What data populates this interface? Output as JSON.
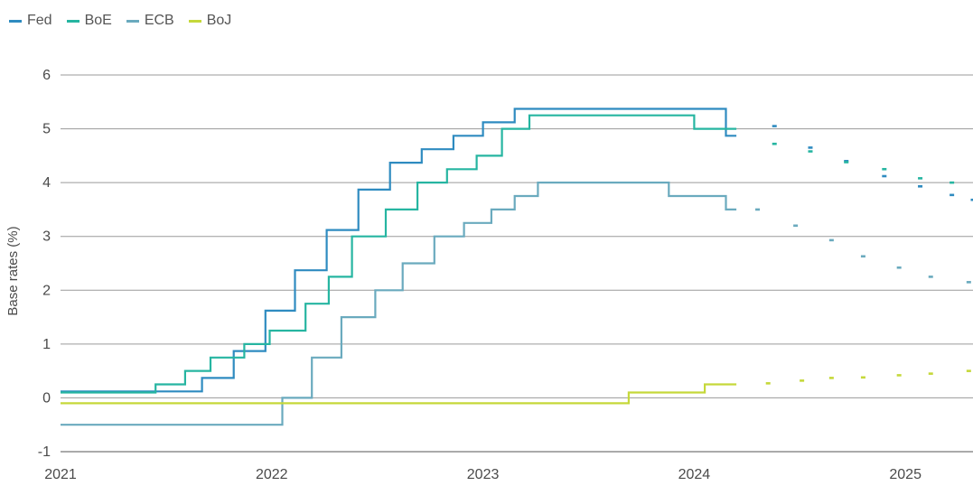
{
  "chart_data": {
    "type": "line",
    "title": "",
    "ylabel": "Base rates (%)",
    "xlabel": "",
    "ylim": [
      -1,
      6
    ],
    "xlim": [
      2021,
      2025.32
    ],
    "yticks": [
      "6",
      "5",
      "4",
      "3",
      "2",
      "1",
      "0",
      "-1"
    ],
    "ytick_values": [
      6,
      5,
      4,
      3,
      2,
      1,
      0,
      -1
    ],
    "xticks": [
      "2021",
      "2022",
      "2023",
      "2024",
      "2025"
    ],
    "xtick_values": [
      2021,
      2022,
      2023,
      2024,
      2025
    ],
    "grid": "horizontal",
    "legend_position": "top-left",
    "series": [
      {
        "name": "Fed",
        "color": "#2e8bc0",
        "steps": [
          [
            2021,
            0.12
          ],
          [
            2021.67,
            0.37
          ],
          [
            2021.82,
            0.87
          ],
          [
            2021.97,
            1.62
          ],
          [
            2022.11,
            2.37
          ],
          [
            2022.26,
            3.12
          ],
          [
            2022.41,
            3.87
          ],
          [
            2022.56,
            4.37
          ],
          [
            2022.71,
            4.62
          ],
          [
            2022.86,
            4.87
          ],
          [
            2023.0,
            5.12
          ],
          [
            2023.15,
            5.37
          ],
          [
            2024.15,
            4.87
          ],
          [
            2024.2,
            4.87
          ]
        ],
        "forecast": [
          [
            2024.38,
            5.05
          ],
          [
            2024.55,
            4.65
          ],
          [
            2024.72,
            4.4
          ],
          [
            2024.9,
            4.12
          ],
          [
            2025.07,
            3.93
          ],
          [
            2025.22,
            3.77
          ],
          [
            2025.32,
            3.68
          ]
        ]
      },
      {
        "name": "BoE",
        "color": "#26b5a1",
        "steps": [
          [
            2021,
            0.1
          ],
          [
            2021.45,
            0.25
          ],
          [
            2021.59,
            0.5
          ],
          [
            2021.71,
            0.75
          ],
          [
            2021.87,
            1.0
          ],
          [
            2021.99,
            1.25
          ],
          [
            2022.16,
            1.75
          ],
          [
            2022.27,
            2.25
          ],
          [
            2022.38,
            3.0
          ],
          [
            2022.54,
            3.5
          ],
          [
            2022.69,
            4.0
          ],
          [
            2022.83,
            4.25
          ],
          [
            2022.97,
            4.5
          ],
          [
            2023.09,
            5.0
          ],
          [
            2023.22,
            5.25
          ],
          [
            2024.0,
            5.0
          ],
          [
            2024.2,
            5.0
          ]
        ],
        "forecast": [
          [
            2024.38,
            4.72
          ],
          [
            2024.55,
            4.58
          ],
          [
            2024.72,
            4.38
          ],
          [
            2024.9,
            4.25
          ],
          [
            2025.07,
            4.08
          ],
          [
            2025.22,
            4.0
          ]
        ]
      },
      {
        "name": "ECB",
        "color": "#6aaabe",
        "steps": [
          [
            2021,
            -0.5
          ],
          [
            2022.05,
            0.0
          ],
          [
            2022.19,
            0.75
          ],
          [
            2022.33,
            1.5
          ],
          [
            2022.49,
            2.0
          ],
          [
            2022.62,
            2.5
          ],
          [
            2022.77,
            3.0
          ],
          [
            2022.91,
            3.25
          ],
          [
            2023.04,
            3.5
          ],
          [
            2023.15,
            3.75
          ],
          [
            2023.26,
            4.0
          ],
          [
            2023.88,
            3.75
          ],
          [
            2024.05,
            3.75
          ],
          [
            2024.15,
            3.5
          ],
          [
            2024.2,
            3.5
          ]
        ],
        "forecast": [
          [
            2024.3,
            3.5
          ],
          [
            2024.48,
            3.2
          ],
          [
            2024.65,
            2.93
          ],
          [
            2024.8,
            2.63
          ],
          [
            2024.97,
            2.42
          ],
          [
            2025.12,
            2.25
          ],
          [
            2025.3,
            2.15
          ]
        ]
      },
      {
        "name": "BoJ",
        "color": "#c5d83a",
        "steps": [
          [
            2021,
            -0.1
          ],
          [
            2023.69,
            0.1
          ],
          [
            2024.05,
            0.25
          ],
          [
            2024.2,
            0.25
          ]
        ],
        "forecast": [
          [
            2024.35,
            0.27
          ],
          [
            2024.51,
            0.32
          ],
          [
            2024.65,
            0.37
          ],
          [
            2024.8,
            0.38
          ],
          [
            2024.97,
            0.42
          ],
          [
            2025.12,
            0.45
          ],
          [
            2025.3,
            0.5
          ]
        ]
      }
    ]
  }
}
